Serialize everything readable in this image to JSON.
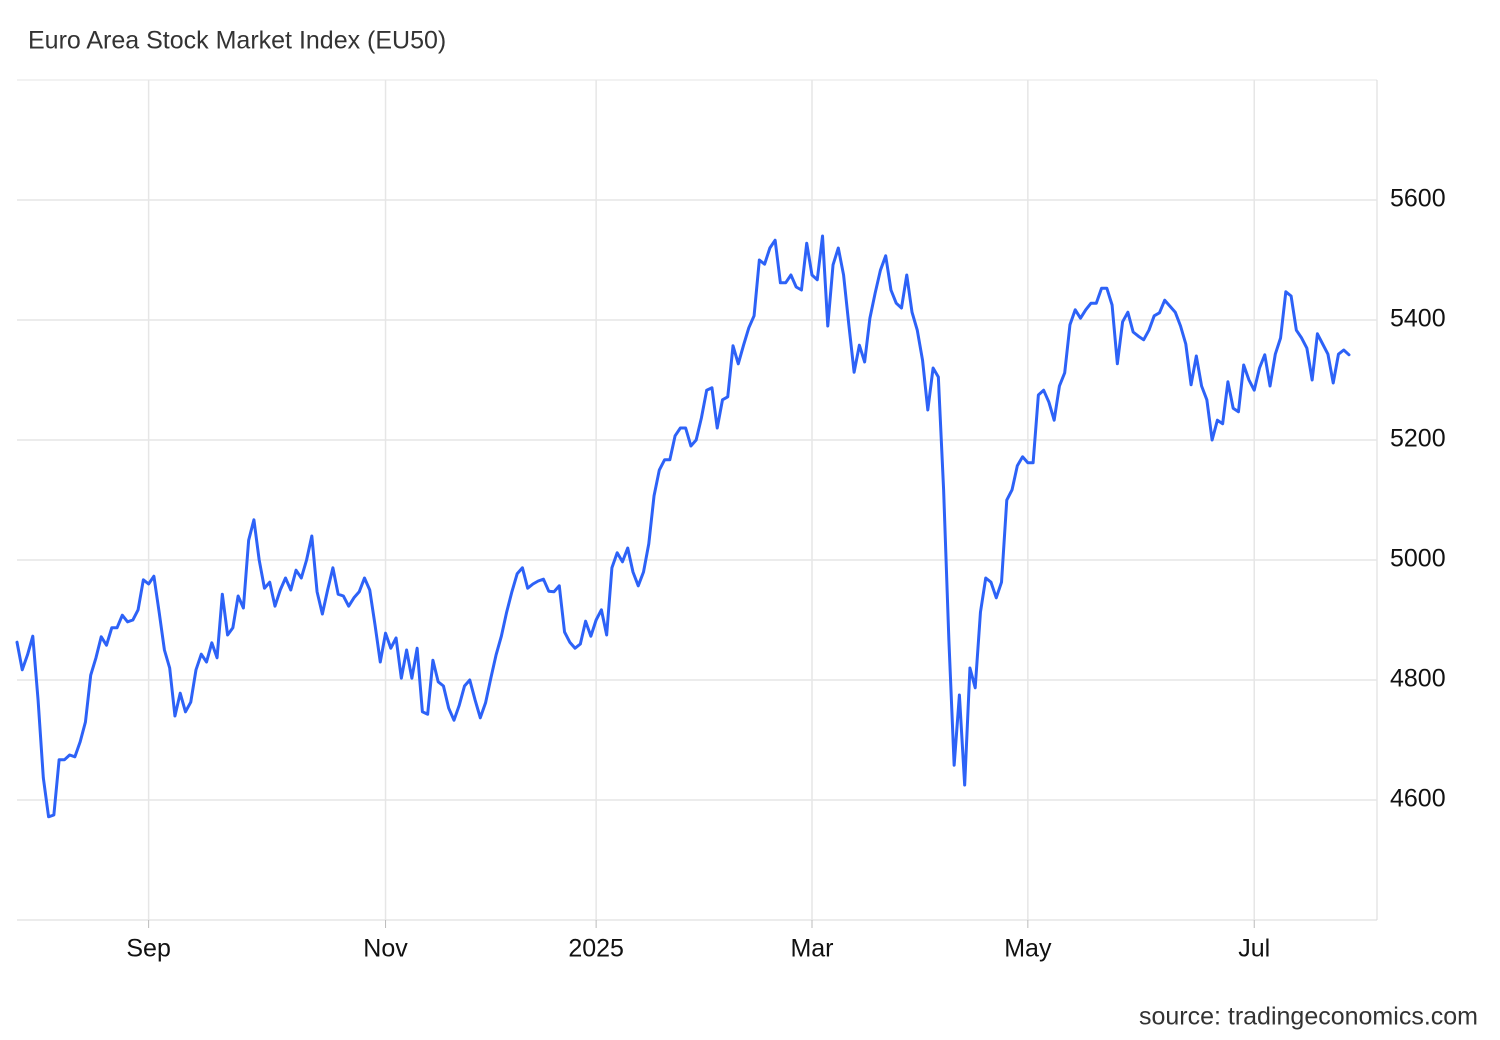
{
  "chart_data": {
    "type": "line",
    "title": "Euro Area Stock Market Index (EU50)",
    "source": "source: tradingeconomics.com",
    "color": "#2d62f7",
    "grid": true,
    "ylim": [
      4400,
      5800
    ],
    "yticks": [
      4600,
      4800,
      5000,
      5200,
      5400,
      5600
    ],
    "categories": [
      null,
      null,
      null,
      null,
      null,
      null,
      null,
      null,
      null,
      null,
      null,
      null,
      null,
      null,
      null,
      null,
      null,
      null,
      null,
      null,
      null,
      null,
      null,
      null,
      null,
      "Sep",
      null,
      null,
      null,
      null,
      null,
      null,
      null,
      null,
      null,
      null,
      null,
      null,
      null,
      null,
      null,
      null,
      null,
      null,
      null,
      null,
      null,
      null,
      null,
      null,
      null,
      null,
      null,
      null,
      null,
      null,
      null,
      null,
      null,
      null,
      null,
      null,
      null,
      null,
      null,
      null,
      null,
      null,
      null,
      null,
      "Nov",
      null,
      null,
      null,
      null,
      null,
      null,
      null,
      null,
      null,
      null,
      null,
      null,
      null,
      null,
      null,
      null,
      null,
      null,
      null,
      null,
      null,
      null,
      null,
      null,
      null,
      null,
      null,
      null,
      null,
      null,
      null,
      null,
      null,
      null,
      null,
      null,
      null,
      null,
      null,
      "2025",
      null,
      null,
      null,
      null,
      null,
      null,
      null,
      null,
      null,
      null,
      null,
      null,
      null,
      null,
      null,
      null,
      null,
      null,
      null,
      null,
      null,
      null,
      null,
      null,
      null,
      null,
      null,
      null,
      null,
      null,
      null,
      null,
      null,
      null,
      null,
      null,
      null,
      null,
      null,
      null,
      "Mar",
      null,
      null,
      null,
      null,
      null,
      null,
      null,
      null,
      null,
      null,
      null,
      null,
      null,
      null,
      null,
      null,
      null,
      null,
      null,
      null,
      null,
      null,
      null,
      null,
      null,
      null,
      null,
      null,
      null,
      null,
      null,
      null,
      null,
      null,
      null,
      null,
      null,
      null,
      null,
      null,
      "May",
      null,
      null,
      null,
      null,
      null,
      null,
      null,
      null,
      null,
      null,
      null,
      null,
      null,
      null,
      null,
      null,
      null,
      null,
      null,
      null,
      null,
      null,
      null,
      null,
      null,
      null,
      null,
      null,
      null,
      null,
      null,
      null,
      null,
      null,
      null,
      null,
      null,
      null,
      null,
      null,
      null,
      null,
      "Jul",
      null,
      null,
      null,
      null,
      null,
      null,
      null,
      null,
      null,
      null,
      null,
      null,
      null,
      null,
      null,
      null,
      null,
      null
    ],
    "values": [
      4863,
      4817,
      4842,
      4873,
      4767,
      4637,
      4572,
      4575,
      4667,
      4667,
      4675,
      4672,
      4697,
      4730,
      4808,
      4837,
      4872,
      4858,
      4887,
      4887,
      4908,
      4897,
      4900,
      4917,
      4967,
      4960,
      4973,
      4913,
      4850,
      4820,
      4740,
      4778,
      4747,
      4763,
      4817,
      4843,
      4830,
      4862,
      4837,
      4943,
      4875,
      4887,
      4940,
      4920,
      5033,
      5067,
      5000,
      4953,
      4963,
      4923,
      4950,
      4970,
      4950,
      4983,
      4970,
      5000,
      5040,
      4947,
      4910,
      4950,
      4987,
      4943,
      4940,
      4923,
      4937,
      4947,
      4970,
      4950,
      4892,
      4830,
      4878,
      4853,
      4870,
      4803,
      4850,
      4803,
      4853,
      4747,
      4743,
      4833,
      4797,
      4790,
      4753,
      4733,
      4758,
      4790,
      4800,
      4767,
      4737,
      4762,
      4803,
      4842,
      4873,
      4913,
      4947,
      4977,
      4987,
      4953,
      4960,
      4965,
      4968,
      4948,
      4947,
      4957,
      4880,
      4863,
      4853,
      4860,
      4898,
      4873,
      4900,
      4917,
      4875,
      4987,
      5012,
      4997,
      5020,
      4980,
      4957,
      4980,
      5027,
      5107,
      5150,
      5167,
      5167,
      5207,
      5220,
      5220,
      5190,
      5200,
      5237,
      5283,
      5287,
      5220,
      5267,
      5272,
      5357,
      5327,
      5358,
      5387,
      5407,
      5500,
      5493,
      5520,
      5533,
      5462,
      5462,
      5475,
      5455,
      5450,
      5528,
      5475,
      5467,
      5540,
      5390,
      5492,
      5520,
      5475,
      5392,
      5313,
      5358,
      5330,
      5403,
      5445,
      5483,
      5507,
      5450,
      5428,
      5420,
      5475,
      5413,
      5383,
      5333,
      5250,
      5320,
      5305,
      5117,
      4867,
      4658,
      4775,
      4625,
      4820,
      4787,
      4913,
      4970,
      4963,
      4937,
      4963,
      5100,
      5117,
      5157,
      5172,
      5162,
      5162,
      5275,
      5283,
      5263,
      5233,
      5290,
      5312,
      5392,
      5417,
      5403,
      5417,
      5428,
      5428,
      5453,
      5453,
      5425,
      5327,
      5397,
      5413,
      5380,
      5373,
      5367,
      5383,
      5407,
      5412,
      5433,
      5423,
      5413,
      5390,
      5360,
      5292,
      5340,
      5290,
      5267,
      5200,
      5233,
      5227,
      5297,
      5253,
      5247,
      5325,
      5300,
      5283,
      5320,
      5342,
      5290,
      5343,
      5370,
      5447,
      5440,
      5383,
      5370,
      5353,
      5300,
      5377,
      5360,
      5343,
      5295,
      5343,
      5350,
      5342
    ]
  }
}
